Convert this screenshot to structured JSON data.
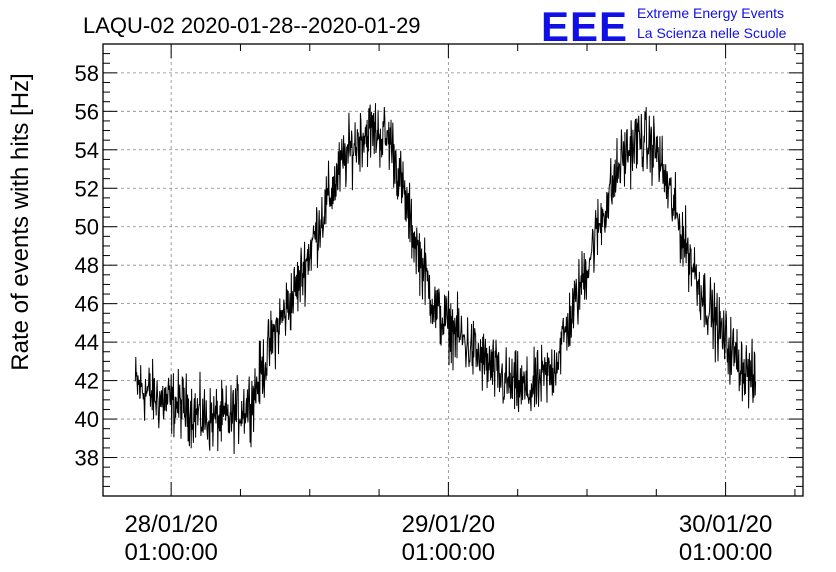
{
  "chart_data": {
    "type": "line",
    "title": "LAQU-02 2020-01-28--2020-01-29",
    "ylabel": "Rate of events with hits [Hz]",
    "xlabel": "",
    "ylim": [
      36,
      59.5
    ],
    "xlim_hours": [
      -5.9,
      54.7
    ],
    "y_ticks": [
      38,
      40,
      42,
      44,
      46,
      48,
      50,
      52,
      54,
      56,
      58
    ],
    "x_ticks": [
      {
        "hour": 0,
        "date": "28/01/20",
        "time": "01:00:00"
      },
      {
        "hour": 24,
        "date": "29/01/20",
        "time": "01:00:00"
      },
      {
        "hour": 48,
        "date": "30/01/20",
        "time": "01:00:00"
      }
    ],
    "grid": true,
    "series": [
      {
        "color": "#000000",
        "x": [
          -3.1,
          -1.0,
          1.0,
          3.0,
          5.0,
          7.0,
          9.0,
          11.0,
          13.0,
          15.0,
          16.5,
          17.5,
          19.0,
          21.0,
          23.0,
          25.0,
          27.0,
          29.0,
          31.0,
          33.0,
          35.0,
          37.0,
          39.0,
          40.5,
          42.0,
          44.0,
          46.0,
          48.0,
          50.6
        ],
        "values": [
          41.8,
          41.0,
          40.7,
          40.0,
          40.0,
          41.0,
          44.5,
          47.0,
          50.5,
          53.5,
          54.8,
          55.0,
          54.5,
          49.5,
          45.5,
          44.3,
          43.0,
          41.9,
          41.4,
          42.5,
          46.0,
          50.0,
          53.5,
          54.6,
          54.0,
          50.0,
          46.5,
          44.0,
          41.8
        ]
      }
    ]
  },
  "logo": {
    "mark": "EEE",
    "line1": "Extreme Energy Events",
    "line2": "La Scienza nelle Scuole",
    "color": "#1010e6"
  }
}
